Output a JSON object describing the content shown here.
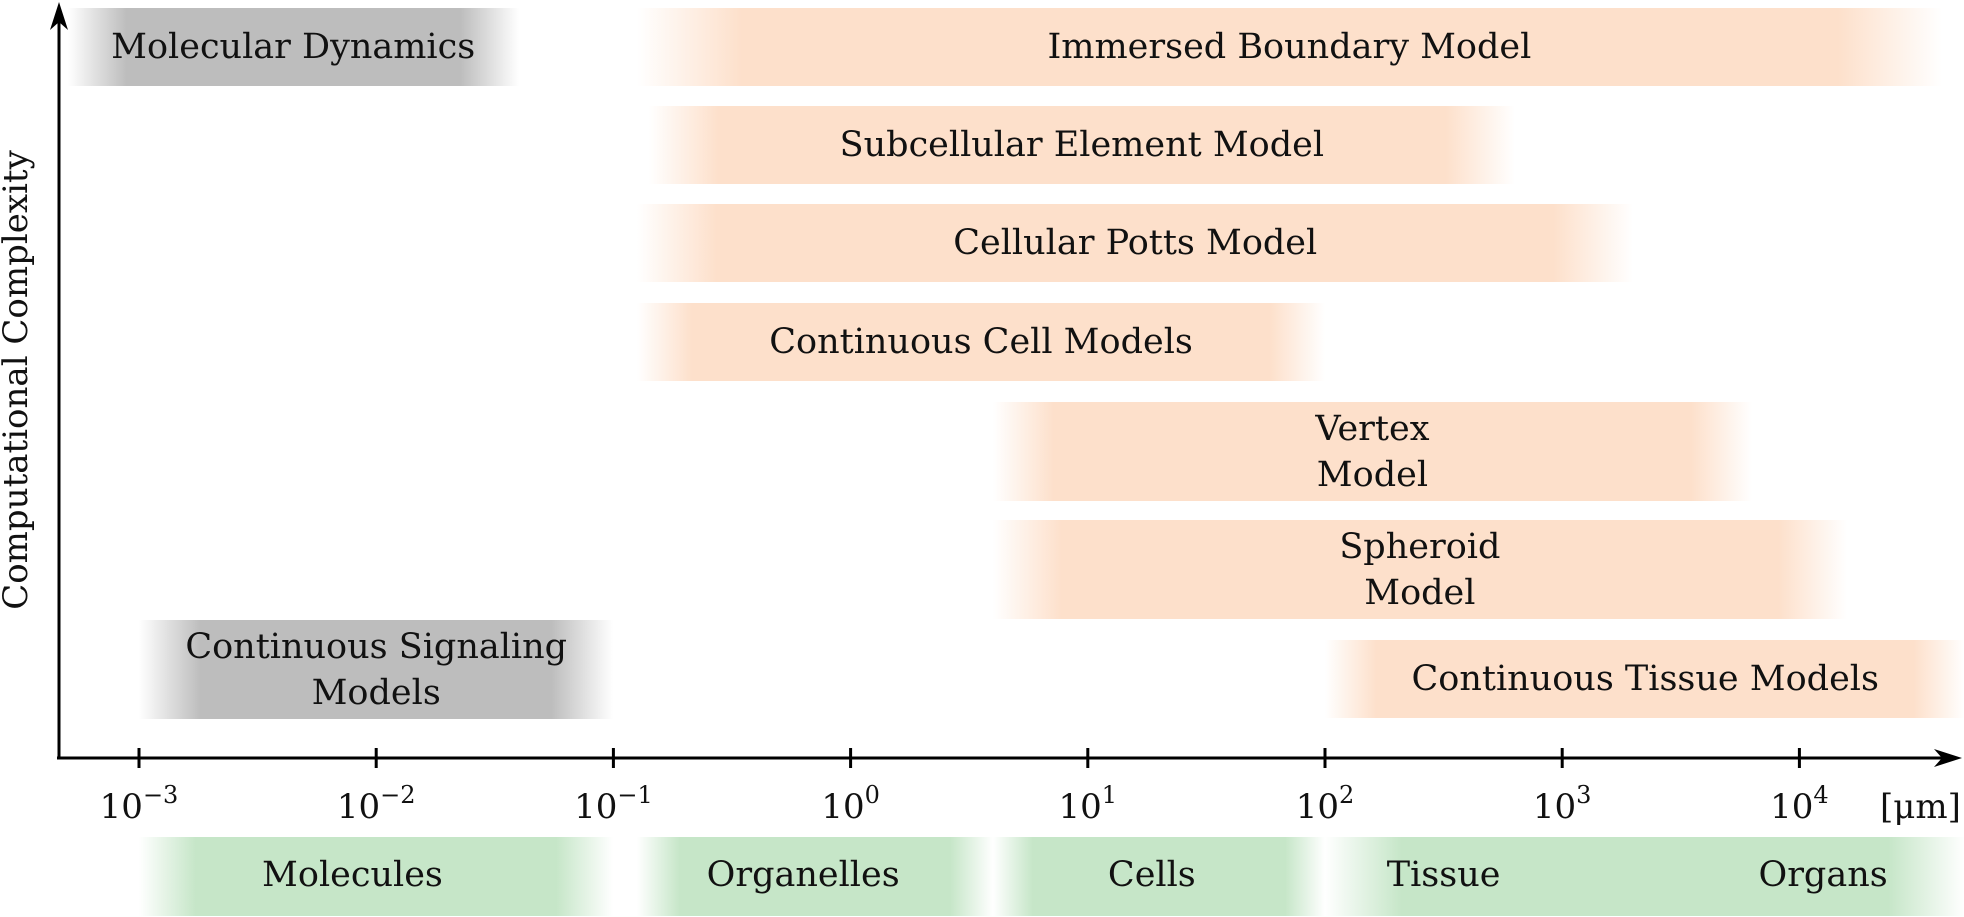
{
  "y_axis_label": "Computational Complexity",
  "x_axis": {
    "unit": "[μm]",
    "ticks": [
      {
        "base": "10",
        "exp": "−3"
      },
      {
        "base": "10",
        "exp": "−2"
      },
      {
        "base": "10",
        "exp": "−1"
      },
      {
        "base": "10",
        "exp": "0"
      },
      {
        "base": "10",
        "exp": "1"
      },
      {
        "base": "10",
        "exp": "2"
      },
      {
        "base": "10",
        "exp": "3"
      },
      {
        "base": "10",
        "exp": "4"
      }
    ]
  },
  "models": [
    {
      "name": "Molecular Dynamics",
      "line2": "",
      "color": "gray",
      "from_exp": -3.3,
      "to_exp": -1.4
    },
    {
      "name": "Immersed Boundary Model",
      "line2": "",
      "color": "orange",
      "from_exp": -0.9,
      "to_exp": 4.6
    },
    {
      "name": "Subcellular Element Model",
      "line2": "",
      "color": "orange",
      "from_exp": -0.85,
      "to_exp": 2.8
    },
    {
      "name": "Cellular Potts Model",
      "line2": "",
      "color": "orange",
      "from_exp": -0.9,
      "to_exp": 3.3
    },
    {
      "name": "Continuous Cell Models",
      "line2": "",
      "color": "orange",
      "from_exp": -0.9,
      "to_exp": 2.0
    },
    {
      "name": "Vertex",
      "line2": "Model",
      "color": "orange",
      "from_exp": 0.6,
      "to_exp": 3.8
    },
    {
      "name": "Spheroid",
      "line2": "Model",
      "color": "orange",
      "from_exp": 0.6,
      "to_exp": 4.2
    },
    {
      "name": "Continuous Signaling",
      "line2": "Models",
      "color": "gray",
      "from_exp": -3.0,
      "to_exp": -1.0
    },
    {
      "name": "Continuous Tissue Models",
      "line2": "",
      "color": "orange",
      "from_exp": 2.0,
      "to_exp": 4.7
    }
  ],
  "scales": [
    {
      "label": "Molecules",
      "from_exp": -3.0,
      "to_exp": -1.0
    },
    {
      "label": "Organelles",
      "from_exp": -0.9,
      "to_exp": 0.6
    },
    {
      "label": "Cells",
      "from_exp": 0.6,
      "to_exp": 2.0
    },
    {
      "label": "Tissue",
      "from_exp": 2.0,
      "to_exp": 4.7
    },
    {
      "label": "Organs",
      "from_exp": 2.0,
      "to_exp": 4.7
    }
  ],
  "colors": {
    "orange": "#fde0cb",
    "gray": "#bdbdbd",
    "green": "#c6e6c8",
    "axis": "#000000"
  }
}
